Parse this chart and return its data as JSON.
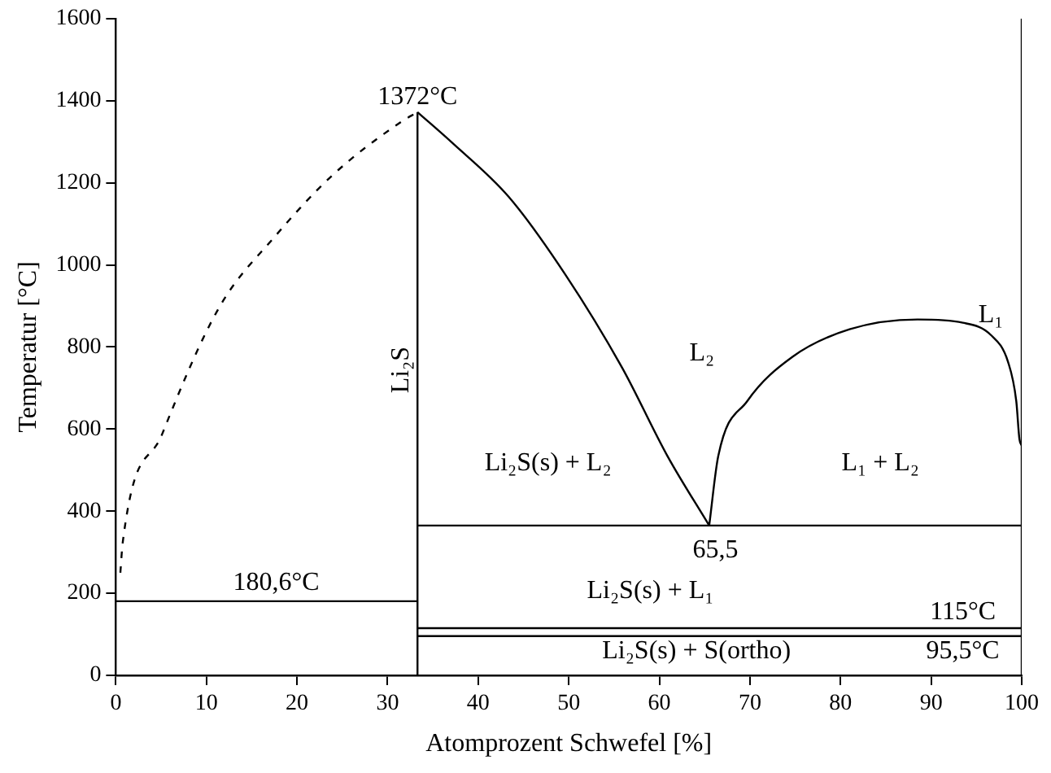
{
  "chart_data": {
    "type": "line",
    "xlabel": "Atomprozent Schwefel [%]",
    "ylabel": "Temperatur [°C]",
    "xlim": [
      0,
      100
    ],
    "xticks": [
      0,
      10,
      20,
      30,
      40,
      50,
      60,
      70,
      80,
      90,
      100
    ],
    "ylim": [
      0,
      1600
    ],
    "yticks": [
      0,
      200,
      400,
      600,
      800,
      1000,
      1200,
      1400,
      1600
    ],
    "grid": false,
    "legend": false,
    "marker": "none",
    "series": [
      {
        "color": "#000000",
        "line_style": "dashed",
        "x": [
          0.5,
          0.75,
          5.1,
          11.4,
          17.6,
          23.9,
          31.4,
          33.3
        ],
        "values": [
          250,
          322,
          587,
          896,
          1070,
          1218,
          1347,
          1372
        ]
      },
      {
        "color": "#000000",
        "x": [
          33.3,
          37.1,
          43.4,
          49.6,
          55.9,
          60.9,
          65.5
        ],
        "values": [
          1372,
          1298,
          1165,
          977,
          749,
          534,
          365
        ]
      },
      {
        "color": "#000000",
        "x": [
          65.5,
          66.5,
          69.7,
          74.7,
          81,
          88.5,
          93.5,
          96.6,
          98.5,
          99.4,
          99.75,
          100
        ],
        "values": [
          365,
          534,
          668,
          776,
          843,
          867,
          859,
          829,
          763,
          668,
          575,
          560
        ]
      },
      {
        "color": "#000000",
        "x": [
          33.3,
          33.3
        ],
        "values": [
          0,
          1372
        ]
      },
      {
        "color": "#000000",
        "x": [
          100,
          100
        ],
        "values": [
          0,
          1600
        ]
      },
      {
        "color": "#000000",
        "x": [
          0,
          33.3
        ],
        "values": [
          180.6,
          180.6
        ]
      },
      {
        "color": "#000000",
        "x": [
          33.3,
          100
        ],
        "values": [
          365,
          365
        ]
      },
      {
        "color": "#000000",
        "x": [
          33.3,
          100
        ],
        "values": [
          115,
          115
        ]
      },
      {
        "color": "#000000",
        "x": [
          33.3,
          100
        ],
        "values": [
          95.5,
          95.5
        ]
      }
    ],
    "annotations": [
      "1372°C",
      "180,6°C",
      "L₂",
      "L₁",
      "Li₂S",
      "Li₂S(s) + L₂",
      "L₁ + L₂",
      "65,5",
      "Li₂S(s) + L₁",
      "115°C",
      "95,5°C",
      "Li₂S(s) + S(ortho)"
    ]
  }
}
